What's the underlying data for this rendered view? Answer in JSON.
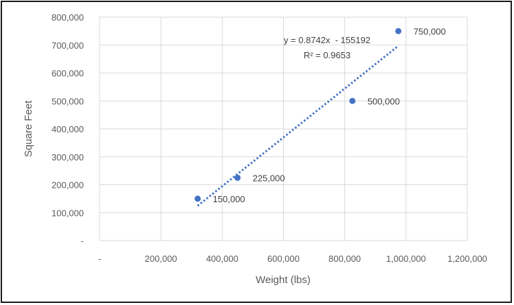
{
  "chart_data": {
    "type": "scatter",
    "title": "",
    "xlabel": "Weight (lbs)",
    "ylabel": "Square Feet",
    "xlim": [
      0,
      1200000
    ],
    "ylim": [
      0,
      800000
    ],
    "x_ticks": [
      0,
      200000,
      400000,
      600000,
      800000,
      1000000,
      1200000
    ],
    "x_tick_labels": [
      "-",
      "200,000",
      "400,000",
      "600,000",
      "800,000",
      "1,000,000",
      "1,200,000"
    ],
    "y_ticks": [
      0,
      100000,
      200000,
      300000,
      400000,
      500000,
      600000,
      700000,
      800000
    ],
    "y_tick_labels": [
      "-",
      "100,000",
      "200,000",
      "300,000",
      "400,000",
      "500,000",
      "600,000",
      "700,000",
      "800,000"
    ],
    "grid": true,
    "legend": "none",
    "points": [
      {
        "x": 320000,
        "y": 150000,
        "label": "150,000"
      },
      {
        "x": 450000,
        "y": 225000,
        "label": "225,000"
      },
      {
        "x": 825000,
        "y": 500000,
        "label": "500,000"
      },
      {
        "x": 975000,
        "y": 750000,
        "label": "750,000"
      }
    ],
    "trendline": {
      "type": "linear",
      "slope": 0.8742,
      "intercept": -155192,
      "x_range": [
        320000,
        975000
      ],
      "equation": "y = 0.8742x  - 155192",
      "r_squared": "R² = 0.9653",
      "style": "dotted"
    },
    "colors": {
      "marker": "#4472c4",
      "trendline": "#4472c4",
      "grid": "#d9d9d9",
      "axis_text": "#595959"
    }
  }
}
